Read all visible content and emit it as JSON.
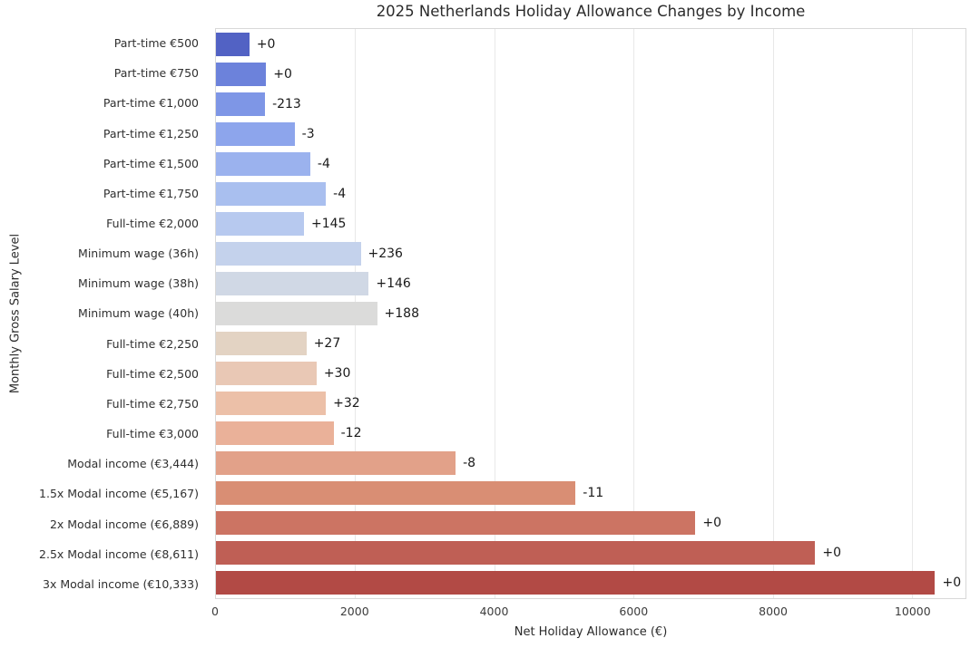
{
  "chart_data": {
    "type": "bar",
    "orientation": "horizontal",
    "title": "2025 Netherlands Holiday Allowance Changes by Income",
    "xlabel": "Net Holiday Allowance (€)",
    "ylabel": "Monthly Gross Salary Level",
    "xlim": [
      0,
      10770
    ],
    "xticks": [
      0,
      2000,
      4000,
      6000,
      8000,
      10000
    ],
    "grid": "vertical",
    "legend": "none",
    "categories": [
      "Part-time €500",
      "Part-time €750",
      "Part-time €1,000",
      "Part-time €1,250",
      "Part-time €1,500",
      "Part-time €1,750",
      "Full-time €2,000",
      "Minimum wage (36h)",
      "Minimum wage (38h)",
      "Minimum wage (40h)",
      "Full-time €2,250",
      "Full-time €2,500",
      "Full-time €2,750",
      "Full-time €3,000",
      "Modal income (€3,444)",
      "1.5x Modal income (€5,167)",
      "2x Modal income (€6,889)",
      "2.5x Modal income (€8,611)",
      "3x Modal income (€10,333)"
    ],
    "values": [
      480,
      720,
      705,
      1130,
      1355,
      1580,
      1265,
      2080,
      2195,
      2315,
      1300,
      1445,
      1580,
      1690,
      3444,
      5167,
      6889,
      8611,
      10333
    ],
    "annotations": [
      "+0",
      "+0",
      "-213",
      "-3",
      "-4",
      "-4",
      "+145",
      "+236",
      "+146",
      "+188",
      "+27",
      "+30",
      "+32",
      "-12",
      "-8",
      "-11",
      "+0",
      "+0",
      "+0"
    ],
    "bar_colors": [
      "#5262C4",
      "#6C82DB",
      "#7E96E6",
      "#8DA5EC",
      "#9BB2EE",
      "#A9BFEF",
      "#B7C9EF",
      "#C4D2EC",
      "#D0D8E5",
      "#DBDBDA",
      "#E3D3C3",
      "#E9C8B5",
      "#ECC0A8",
      "#EAB199",
      "#E2A189",
      "#D98E74",
      "#CC7463",
      "#BF5F55",
      "#B24A45"
    ],
    "colors": {
      "grid": "#e8e8e8",
      "spine": "#d8d8d8",
      "title_text": "#2b2b2b",
      "tick_text": "#3c3c3c",
      "annotation_text": "#1a1a1a"
    }
  }
}
